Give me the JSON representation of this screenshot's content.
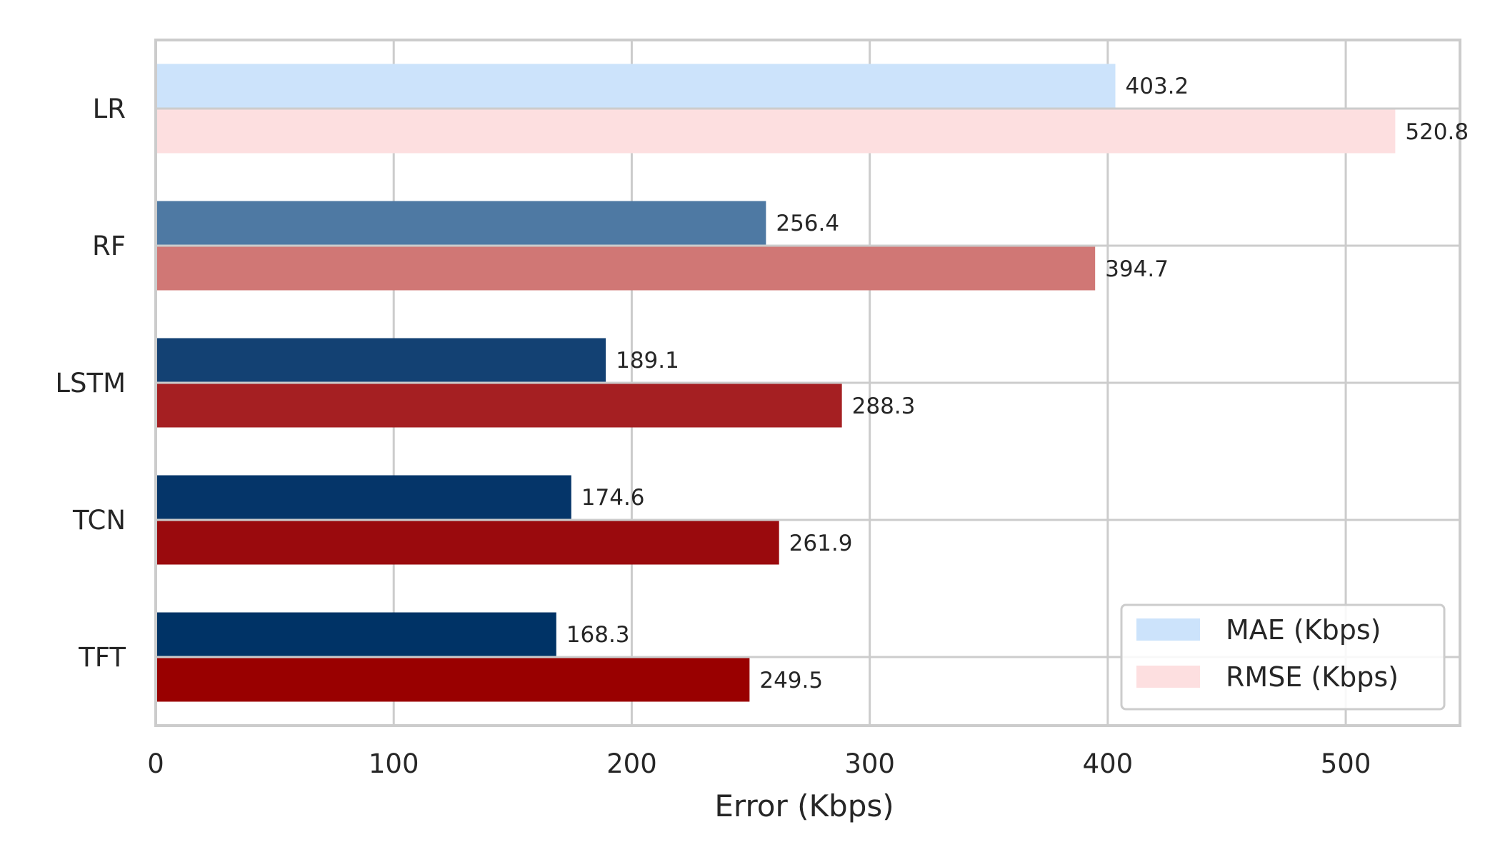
{
  "chart_data": {
    "type": "bar",
    "orientation": "horizontal",
    "categories": [
      "LR",
      "RF",
      "LSTM",
      "TCN",
      "TFT"
    ],
    "series": [
      {
        "name": "MAE (Kbps)",
        "values": [
          403.2,
          256.4,
          189.1,
          174.6,
          168.3
        ],
        "value_labels": [
          "403.2",
          "256.4",
          "189.1",
          "174.6",
          "168.3"
        ],
        "colors": [
          "#cce3fb",
          "#4e79a3",
          "#134173",
          "#053569",
          "#003366"
        ]
      },
      {
        "name": "RMSE (Kbps)",
        "values": [
          520.8,
          394.7,
          288.3,
          261.9,
          249.5
        ],
        "value_labels": [
          "520.8",
          "394.7",
          "288.3",
          "261.9",
          "249.5"
        ],
        "colors": [
          "#fddfe0",
          "#d07775",
          "#a51f22",
          "#9a0a0d",
          "#990000"
        ]
      }
    ],
    "xlabel": "Error (Kbps)",
    "ylabel": "",
    "title": "",
    "xlim": [
      0,
      548
    ],
    "xticks": [
      0,
      100,
      200,
      300,
      400,
      500
    ],
    "xtick_labels": [
      "0",
      "100",
      "200",
      "300",
      "400",
      "500"
    ],
    "grid": true,
    "legend_position": "bottom-right",
    "legend_colors": [
      "#cce3fb",
      "#fddfe0"
    ]
  }
}
